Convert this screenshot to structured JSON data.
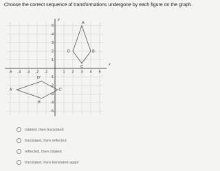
{
  "question": "Choose the correct sequence of transformations undergone by each figure on the graph.",
  "graph": {
    "x_label": "x",
    "y_label": "y",
    "x_ticks": [
      -5,
      -4,
      -3,
      -2,
      -1,
      1,
      2,
      3,
      4,
      5
    ],
    "y_ticks": [
      5,
      4,
      3,
      2,
      1,
      -1,
      -2,
      -3,
      -4,
      -5
    ],
    "points": [
      "A",
      "B",
      "C",
      "D",
      "A'",
      "B'",
      "C'",
      "D'"
    ]
  },
  "options": [
    "rotated, then translated",
    "translated, then reflected",
    "reflected, then rotated",
    "translated, then translated again"
  ]
}
